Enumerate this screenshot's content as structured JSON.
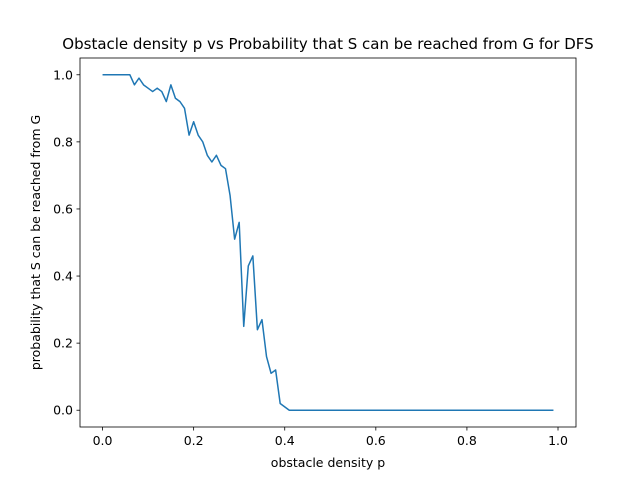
{
  "chart_data": {
    "type": "line",
    "title": "Obstacle density p vs Probability that S can be reached from G for DFS",
    "xlabel": "obstacle density p",
    "ylabel": "probability that S can be reached from G",
    "xlim": [
      -0.0495,
      1.0395
    ],
    "ylim": [
      -0.05,
      1.05
    ],
    "xticks": [
      0.0,
      0.2,
      0.4,
      0.6,
      0.8,
      1.0
    ],
    "xtick_labels": [
      "0.0",
      "0.2",
      "0.4",
      "0.6",
      "0.8",
      "1.0"
    ],
    "yticks": [
      0.0,
      0.2,
      0.4,
      0.6,
      0.8,
      1.0
    ],
    "ytick_labels": [
      "0.0",
      "0.2",
      "0.4",
      "0.6",
      "0.8",
      "1.0"
    ],
    "grid": false,
    "legend": "none",
    "line_color": "#1f77b4",
    "series": [
      {
        "x": [
          0.0,
          0.01,
          0.02,
          0.03,
          0.04,
          0.05,
          0.06,
          0.07,
          0.08,
          0.09,
          0.1,
          0.11,
          0.12,
          0.13,
          0.14,
          0.15,
          0.16,
          0.17,
          0.18,
          0.19,
          0.2,
          0.21,
          0.22,
          0.23,
          0.24,
          0.25,
          0.26,
          0.27,
          0.28,
          0.29,
          0.3,
          0.31,
          0.32,
          0.33,
          0.34,
          0.35,
          0.36,
          0.37,
          0.38,
          0.39,
          0.4,
          0.41,
          0.42,
          0.43,
          0.44,
          0.45,
          0.46,
          0.47,
          0.48,
          0.49,
          0.5,
          0.51,
          0.52,
          0.53,
          0.54,
          0.55,
          0.56,
          0.57,
          0.58,
          0.59,
          0.6,
          0.61,
          0.62,
          0.63,
          0.64,
          0.65,
          0.66,
          0.67,
          0.68,
          0.69,
          0.7,
          0.71,
          0.72,
          0.73,
          0.74,
          0.75,
          0.76,
          0.77,
          0.78,
          0.79,
          0.8,
          0.81,
          0.82,
          0.83,
          0.84,
          0.85,
          0.86,
          0.87,
          0.88,
          0.89,
          0.9,
          0.91,
          0.92,
          0.93,
          0.94,
          0.95,
          0.96,
          0.97,
          0.98,
          0.99
        ],
        "values": [
          1.0,
          1.0,
          1.0,
          1.0,
          1.0,
          1.0,
          1.0,
          0.97,
          0.99,
          0.97,
          0.96,
          0.95,
          0.96,
          0.95,
          0.92,
          0.97,
          0.93,
          0.92,
          0.9,
          0.82,
          0.86,
          0.82,
          0.8,
          0.76,
          0.74,
          0.76,
          0.73,
          0.72,
          0.64,
          0.51,
          0.56,
          0.25,
          0.43,
          0.46,
          0.24,
          0.27,
          0.16,
          0.11,
          0.12,
          0.02,
          0.01,
          0.0,
          0.0,
          0.0,
          0.0,
          0.0,
          0.0,
          0.0,
          0.0,
          0.0,
          0.0,
          0.0,
          0.0,
          0.0,
          0.0,
          0.0,
          0.0,
          0.0,
          0.0,
          0.0,
          0.0,
          0.0,
          0.0,
          0.0,
          0.0,
          0.0,
          0.0,
          0.0,
          0.0,
          0.0,
          0.0,
          0.0,
          0.0,
          0.0,
          0.0,
          0.0,
          0.0,
          0.0,
          0.0,
          0.0,
          0.0,
          0.0,
          0.0,
          0.0,
          0.0,
          0.0,
          0.0,
          0.0,
          0.0,
          0.0,
          0.0,
          0.0,
          0.0,
          0.0,
          0.0,
          0.0,
          0.0,
          0.0,
          0.0,
          0.0
        ]
      }
    ]
  }
}
